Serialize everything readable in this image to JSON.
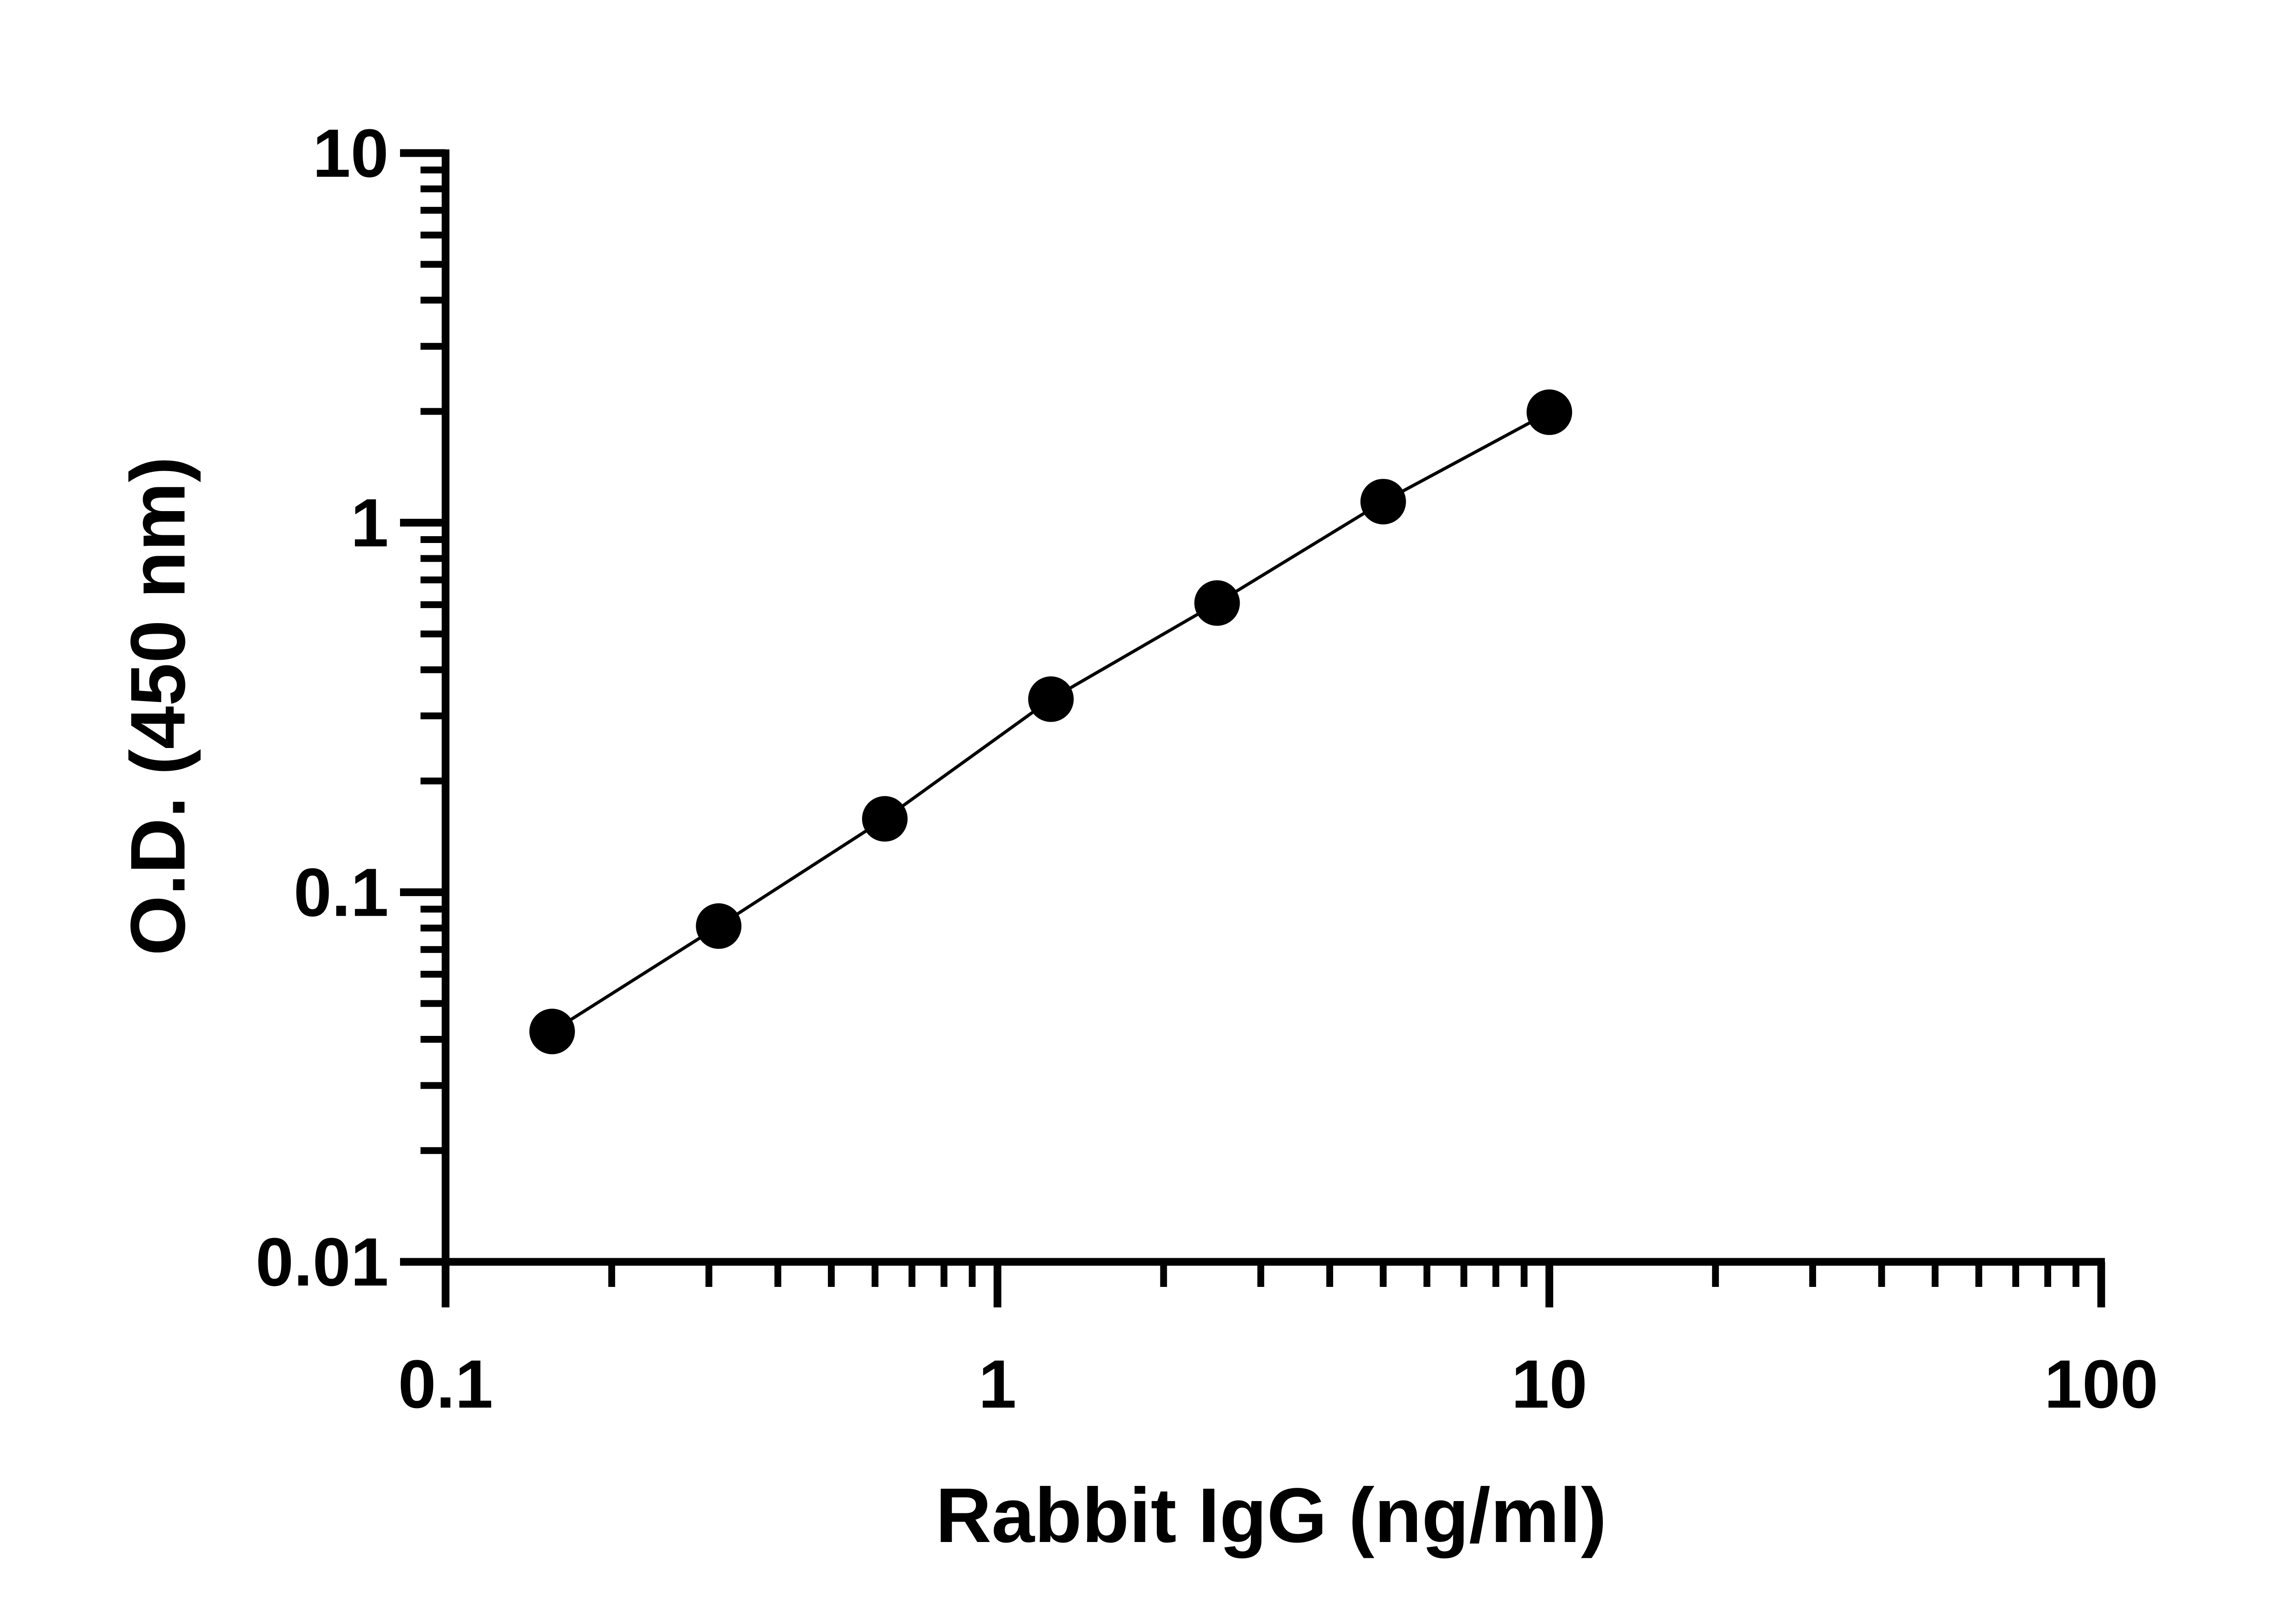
{
  "chart_data": {
    "type": "scatter",
    "title": "",
    "xlabel": "Rabbit IgG (ng/ml)",
    "ylabel": "O.D. (450 nm)",
    "xscale": "log",
    "yscale": "log",
    "xlim": [
      0.1,
      100
    ],
    "ylim": [
      0.01,
      10
    ],
    "x_tick_labels": [
      "0.1",
      "1",
      "10",
      "100"
    ],
    "y_tick_labels": [
      "0.01",
      "0.1",
      "1",
      "10"
    ],
    "grid": false,
    "legend": "none",
    "series": [
      {
        "x": [
          0.156,
          0.3125,
          0.625,
          1.25,
          2.5,
          5,
          10
        ],
        "y": [
          0.042,
          0.081,
          0.158,
          0.333,
          0.606,
          1.14,
          1.99
        ],
        "marker": "filled-circle",
        "fit_line": true,
        "color": "#000000"
      }
    ]
  }
}
